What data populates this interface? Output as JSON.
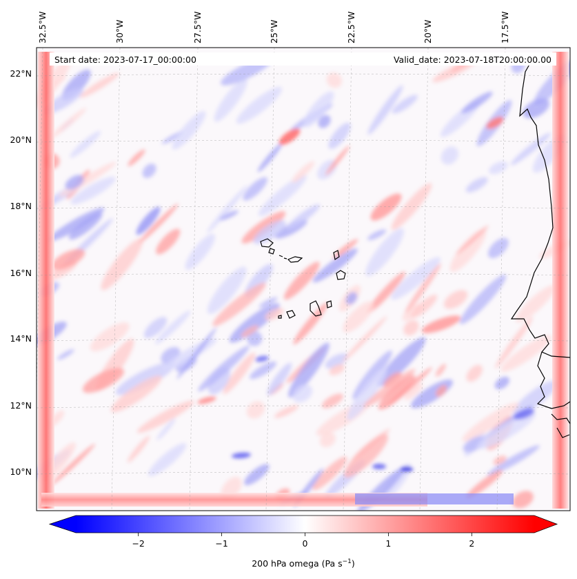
{
  "header": {
    "start_date": "Start date: 2023-07-17_00:00:00",
    "valid_date": "Valid_date: 2023-07-18T20:00:00.00"
  },
  "map": {
    "longitude_labels": [
      "32.5°W",
      "30°W",
      "27.5°W",
      "25°W",
      "22.5°W",
      "20°W",
      "17.5°W"
    ],
    "latitude_labels": [
      "22°N",
      "20°N",
      "18°N",
      "16°N",
      "14°N",
      "12°N",
      "10°N"
    ],
    "gridlines": "dashed",
    "field": "200 hPa omega",
    "colormap": "bwr",
    "coastline_color": "#000000"
  },
  "colorbar": {
    "ticks": [
      "−2",
      "−1",
      "0",
      "1",
      "2"
    ],
    "tick_values": [
      -2,
      -1,
      0,
      1,
      2
    ],
    "range": [
      -2.75,
      2.75
    ],
    "extend": "both",
    "label": "200 hPa omega (Pa s",
    "label_sup": "−1",
    "label_end": ")",
    "min_color": "#0000ff",
    "mid_color": "#ffffff",
    "max_color": "#ff0000"
  }
}
